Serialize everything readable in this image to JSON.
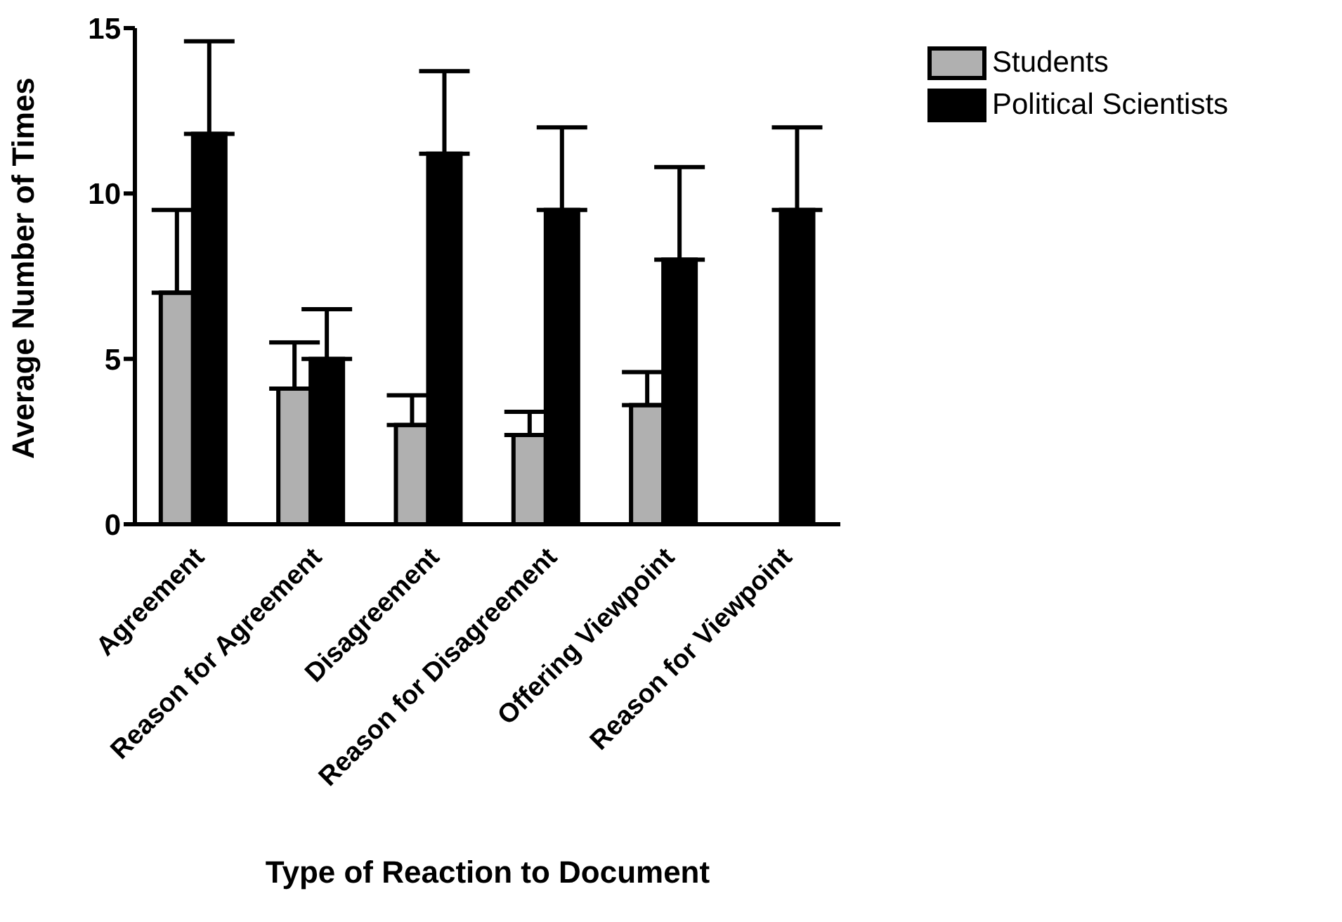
{
  "chart_data": {
    "type": "bar",
    "xlabel": "Type of Reaction to Document",
    "ylabel": "Average Number of Times",
    "categories": [
      "Agreement",
      "Reason for Agreement",
      "Disagreement",
      "Reason for Disagreement",
      "Offering Viewpoint",
      "Reason for Viewpoint"
    ],
    "series": [
      {
        "name": "Students",
        "color": "#b0b0b0",
        "values": [
          7.0,
          4.1,
          3.0,
          2.7,
          3.6,
          null
        ],
        "errors": [
          [
            7.0,
            9.5
          ],
          [
            4.1,
            5.5
          ],
          [
            3.0,
            3.9
          ],
          [
            2.7,
            3.4
          ],
          [
            3.6,
            4.6
          ],
          null
        ]
      },
      {
        "name": "Political Scientists",
        "color": "#000000",
        "values": [
          11.8,
          5.0,
          11.2,
          9.5,
          8.0,
          9.5
        ],
        "errors": [
          [
            11.8,
            14.6
          ],
          [
            5.0,
            6.5
          ],
          [
            11.2,
            13.7
          ],
          [
            9.5,
            12.0
          ],
          [
            8.0,
            10.8
          ],
          [
            9.5,
            12.0
          ]
        ]
      }
    ],
    "ylim": [
      0,
      15
    ],
    "yticks": [
      0,
      5,
      10,
      15
    ],
    "grid": false,
    "legend": "top right"
  }
}
